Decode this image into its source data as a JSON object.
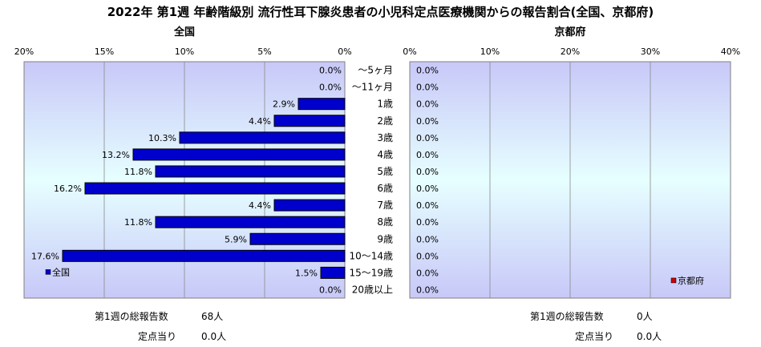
{
  "title": "2022年 第1週 年齢階級別 流行性耳下腺炎患者の小児科定点医療機関からの報告割合(全国、京都府)",
  "colors": {
    "bar_national": "#0000cc",
    "bar_kyoto": "#cc0000",
    "plot_top": "#c8c8f8",
    "plot_mid": "#e6ffff",
    "plot_bottom": "#c8c8f8"
  },
  "chart_data": [
    {
      "type": "bar",
      "orientation": "horizontal",
      "title": "全国",
      "x_direction": "reversed",
      "xlim": [
        0,
        20
      ],
      "xticks": [
        "20%",
        "15%",
        "10%",
        "5%",
        "0%"
      ],
      "categories": [
        "～5ヶ月",
        "～11ヶ月",
        "1歳",
        "2歳",
        "3歳",
        "4歳",
        "5歳",
        "6歳",
        "7歳",
        "8歳",
        "9歳",
        "10～14歳",
        "15～19歳",
        "20歳以上"
      ],
      "series": [
        {
          "name": "全国",
          "values": [
            0.0,
            0.0,
            2.9,
            4.4,
            10.3,
            13.2,
            11.8,
            16.2,
            4.4,
            11.8,
            5.9,
            17.6,
            1.5,
            0.0
          ],
          "labels": [
            "0.0%",
            "0.0%",
            "2.9%",
            "4.4%",
            "10.3%",
            "13.2%",
            "11.8%",
            "16.2%",
            "4.4%",
            "11.8%",
            "5.9%",
            "17.6%",
            "1.5%",
            "0.0%"
          ]
        }
      ],
      "legend_position": "bottom-left",
      "grid": true
    },
    {
      "type": "bar",
      "orientation": "horizontal",
      "title": "京都府",
      "xlim": [
        0,
        40
      ],
      "xticks": [
        "0%",
        "10%",
        "20%",
        "30%",
        "40%"
      ],
      "categories": [
        "～5ヶ月",
        "～11ヶ月",
        "1歳",
        "2歳",
        "3歳",
        "4歳",
        "5歳",
        "6歳",
        "7歳",
        "8歳",
        "9歳",
        "10～14歳",
        "15～19歳",
        "20歳以上"
      ],
      "series": [
        {
          "name": "京都府",
          "values": [
            0.0,
            0.0,
            0.0,
            0.0,
            0.0,
            0.0,
            0.0,
            0.0,
            0.0,
            0.0,
            0.0,
            0.0,
            0.0,
            0.0
          ],
          "labels": [
            "0.0%",
            "0.0%",
            "0.0%",
            "0.0%",
            "0.0%",
            "0.0%",
            "0.0%",
            "0.0%",
            "0.0%",
            "0.0%",
            "0.0%",
            "0.0%",
            "0.0%",
            "0.0%"
          ]
        }
      ],
      "legend_position": "bottom-right",
      "grid": true
    }
  ],
  "summary": {
    "national": {
      "total_label": "第1週の総報告数",
      "total_value": "68人",
      "per_label": "定点当り",
      "per_value": "0.0人"
    },
    "kyoto": {
      "total_label": "第1週の総報告数",
      "total_value": "0人",
      "per_label": "定点当り",
      "per_value": "0.0人"
    }
  }
}
